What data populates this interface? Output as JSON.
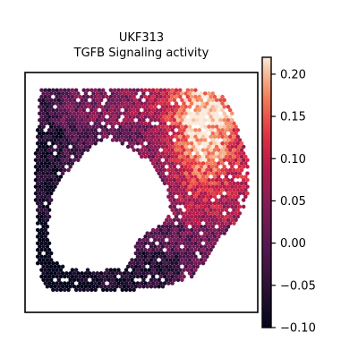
{
  "chart_data": {
    "type": "heatmap",
    "title": "UKF313",
    "subtitle": "TGFB Signaling activity",
    "xlabel": "",
    "ylabel": "",
    "grid": false,
    "legend": "colorbar-right",
    "colormap": "rocket",
    "colorbar": {
      "vmin": -0.1,
      "vmax": 0.22,
      "ticks": [
        -0.1,
        -0.05,
        0.0,
        0.05,
        0.1,
        0.15,
        0.2
      ],
      "tick_labels": [
        "−0.10",
        "−0.05",
        "0.00",
        "0.05",
        "0.10",
        "0.15",
        "0.20"
      ]
    },
    "colors": {
      "low": "#03051a",
      "mid_dark": "#701f57",
      "mid": "#e13342",
      "high": "#faebdd",
      "frame": "#000000"
    }
  }
}
